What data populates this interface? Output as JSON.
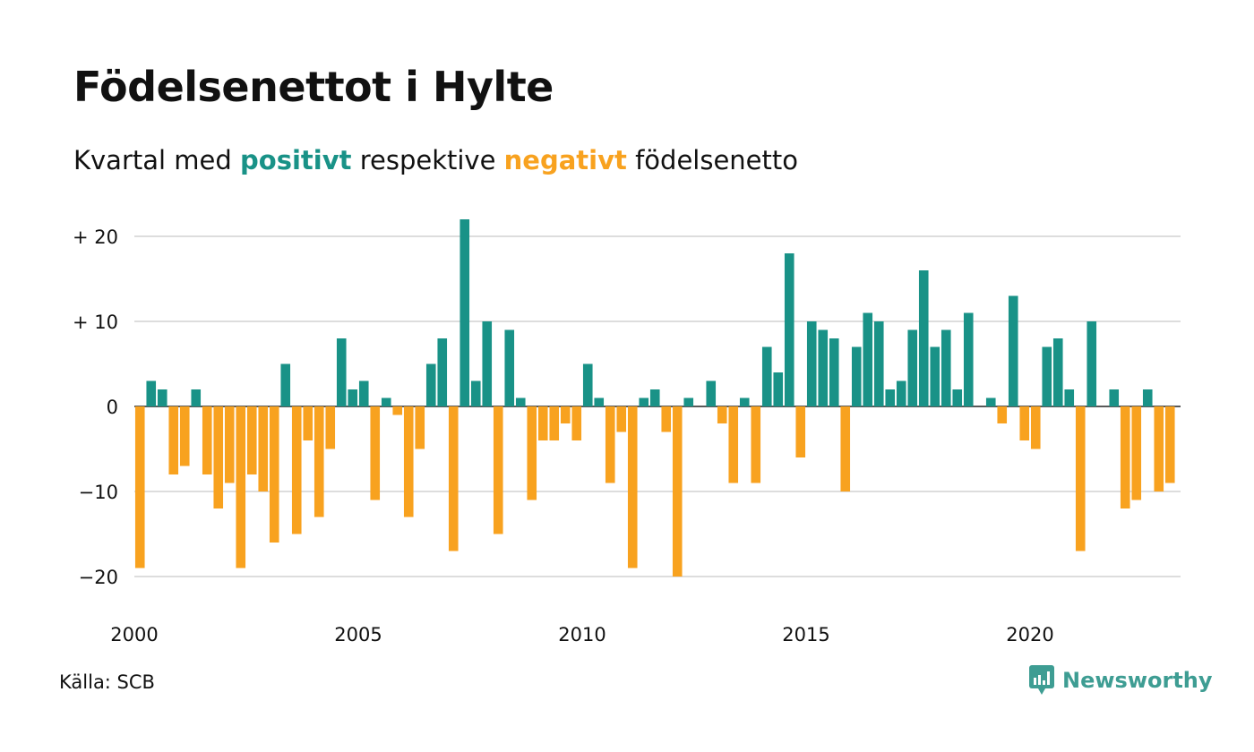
{
  "title": "Födelsenettot i Hylte",
  "subtitle": {
    "part1": "Kvartal med ",
    "positive_word": "positivt",
    "part2": " respektive ",
    "negative_word": "negativt",
    "part3": " födelsenetto"
  },
  "source": "Källa: SCB",
  "brand": "Newsworthy",
  "colors": {
    "positive": "#199287",
    "negative": "#f8a21f",
    "grid": "#dddddd",
    "brand": "#3e9d93"
  },
  "chart_data": {
    "type": "bar",
    "x_start": "2000 Q1",
    "x_tick_labels": [
      "2000",
      "2005",
      "2010",
      "2015",
      "2020"
    ],
    "y_ticks": [
      20,
      10,
      0,
      -10,
      -20
    ],
    "y_tick_labels": [
      "+ 20",
      "+ 10",
      "0",
      "−10",
      "−20"
    ],
    "ylim": [
      -20,
      22
    ],
    "grid": true,
    "values": [
      -19,
      3,
      2,
      -8,
      -7,
      2,
      -8,
      -12,
      -9,
      -19,
      -8,
      -10,
      -16,
      5,
      -15,
      -4,
      -13,
      -5,
      8,
      2,
      3,
      -11,
      1,
      -1,
      -13,
      -5,
      5,
      8,
      -17,
      22,
      3,
      10,
      -15,
      9,
      1,
      -11,
      -4,
      -4,
      -2,
      -4,
      5,
      1,
      -9,
      -3,
      -19,
      1,
      2,
      -3,
      -20,
      1,
      0,
      3,
      -2,
      -9,
      1,
      -9,
      7,
      4,
      18,
      -6,
      10,
      9,
      8,
      -10,
      7,
      11,
      10,
      2,
      3,
      9,
      16,
      7,
      9,
      2,
      11,
      0,
      1,
      -2,
      13,
      -4,
      -5,
      7,
      8,
      2,
      -17,
      10,
      0,
      2,
      -12,
      -11,
      2,
      -10,
      -9
    ]
  }
}
